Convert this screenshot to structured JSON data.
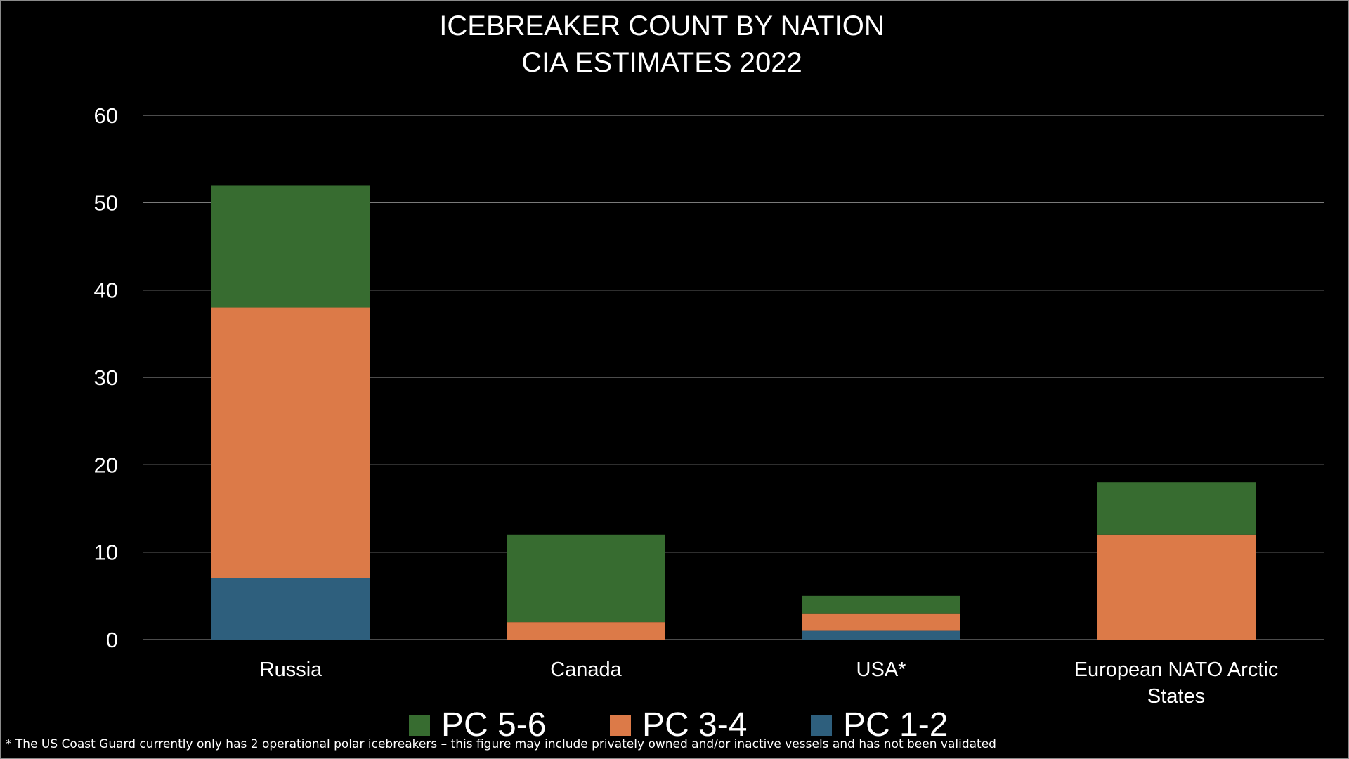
{
  "chart_data": {
    "type": "bar",
    "stacked": true,
    "title": [
      "ICEBREAKER COUNT BY NATION",
      "CIA ESTIMATES 2022"
    ],
    "categories": [
      [
        "Russia"
      ],
      [
        "Canada"
      ],
      [
        "USA*"
      ],
      [
        "European NATO Arctic",
        "States"
      ]
    ],
    "series": [
      {
        "name": "PC 1-2",
        "color": "#2e5f7d",
        "values": [
          7,
          0,
          1,
          0
        ]
      },
      {
        "name": "PC 3-4",
        "color": "#dc7a48",
        "values": [
          31,
          2,
          2,
          12
        ]
      },
      {
        "name": "PC 5-6",
        "color": "#376c30",
        "values": [
          14,
          10,
          2,
          6
        ]
      }
    ],
    "legend_order": [
      "PC 5-6",
      "PC 3-4",
      "PC 1-2"
    ],
    "ylim": [
      0,
      60
    ],
    "yticks": [
      0,
      10,
      20,
      30,
      40,
      50,
      60
    ],
    "grid": true,
    "legend_position": "bottom",
    "xlabel": "",
    "ylabel": "",
    "footnote": "* The US Coast Guard currently only has 2 operational polar icebreakers – this figure may include privately owned and/or inactive vessels and has not been validated"
  },
  "colors": {
    "background": "#000000",
    "gridline": "#7a7a7a",
    "text": "#ffffff"
  }
}
